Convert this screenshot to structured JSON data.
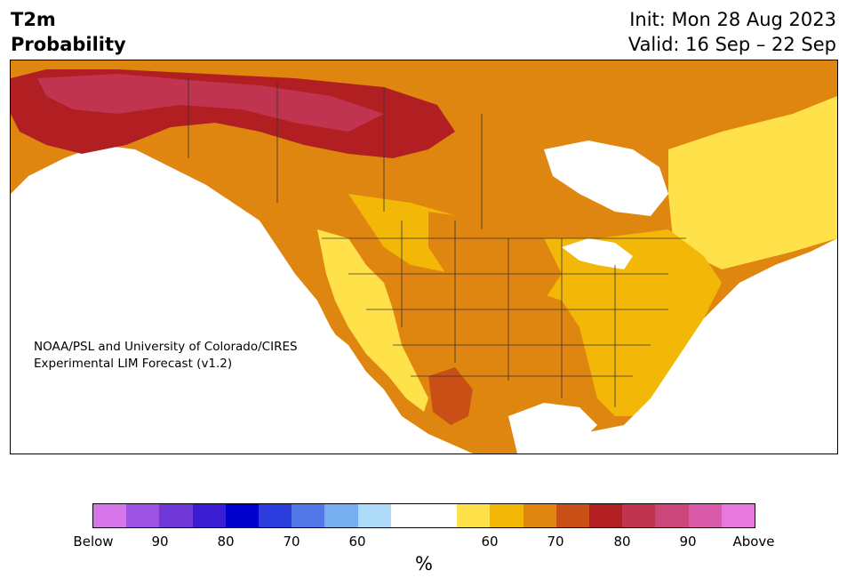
{
  "title": {
    "line1": "T2m",
    "line2": "Probability"
  },
  "init": "Init: Mon 28 Aug 2023",
  "valid": "Valid: 16 Sep – 22 Sep",
  "credit": {
    "line1": "NOAA/PSL and University of Colorado/CIRES",
    "line2": "Experimental LIM Forecast (v1.2)"
  },
  "colorbar": {
    "colors": [
      "#d676ea",
      "#9e54e2",
      "#7038d6",
      "#3a1cd2",
      "#0000cd",
      "#2a3ddc",
      "#5278e8",
      "#76aef0",
      "#aedcf8",
      "#ffffff",
      "#ffffff",
      "#ffe24a",
      "#f3b807",
      "#df8610",
      "#c85017",
      "#b21f22",
      "#c0344f",
      "#cb477a",
      "#d85aa8",
      "#e877de"
    ],
    "labels": [
      "Below",
      "90",
      "80",
      "70",
      "60",
      "60",
      "70",
      "80",
      "90",
      "Above"
    ],
    "unit": "%"
  },
  "map": {
    "region": "North America",
    "legend_colors": {
      "above_60": "#ffe24a",
      "above_60_70": "#f3b807",
      "above_70_80": "#df8610",
      "above_80": "#c85017",
      "above_85": "#b21f22",
      "above_90": "#c0344f"
    }
  }
}
